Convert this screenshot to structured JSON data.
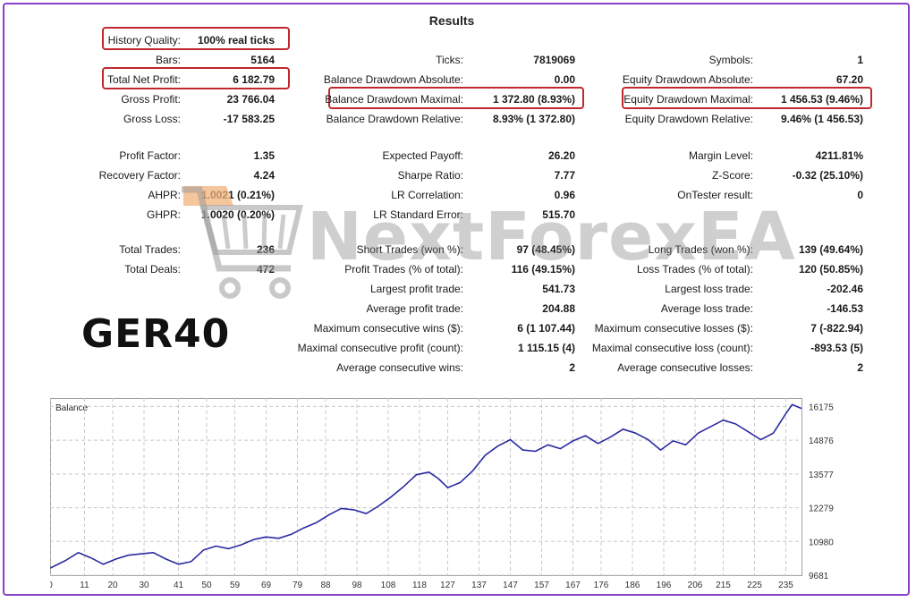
{
  "title": "Results",
  "stats": {
    "history_quality": {
      "label": "History Quality:",
      "value": "100% real ticks"
    },
    "bars": {
      "label": "Bars:",
      "value": "5164"
    },
    "total_net_profit": {
      "label": "Total Net Profit:",
      "value": "6 182.79"
    },
    "gross_profit": {
      "label": "Gross Profit:",
      "value": "23 766.04"
    },
    "gross_loss": {
      "label": "Gross Loss:",
      "value": "-17 583.25"
    },
    "ticks": {
      "label": "Ticks:",
      "value": "7819069"
    },
    "balance_dd_abs": {
      "label": "Balance Drawdown Absolute:",
      "value": "0.00"
    },
    "balance_dd_max": {
      "label": "Balance Drawdown Maximal:",
      "value": "1 372.80 (8.93%)"
    },
    "balance_dd_rel": {
      "label": "Balance Drawdown Relative:",
      "value": "8.93% (1 372.80)"
    },
    "symbols": {
      "label": "Symbols:",
      "value": "1"
    },
    "equity_dd_abs": {
      "label": "Equity Drawdown Absolute:",
      "value": "67.20"
    },
    "equity_dd_max": {
      "label": "Equity Drawdown Maximal:",
      "value": "1 456.53 (9.46%)"
    },
    "equity_dd_rel": {
      "label": "Equity Drawdown Relative:",
      "value": "9.46% (1 456.53)"
    },
    "profit_factor": {
      "label": "Profit Factor:",
      "value": "1.35"
    },
    "recovery_factor": {
      "label": "Recovery Factor:",
      "value": "4.24"
    },
    "ahpr": {
      "label": "AHPR:",
      "value": "1.0021 (0.21%)"
    },
    "ghpr": {
      "label": "GHPR:",
      "value": "1.0020 (0.20%)"
    },
    "expected_payoff": {
      "label": "Expected Payoff:",
      "value": "26.20"
    },
    "sharpe_ratio": {
      "label": "Sharpe Ratio:",
      "value": "7.77"
    },
    "lr_correlation": {
      "label": "LR Correlation:",
      "value": "0.96"
    },
    "lr_std_error": {
      "label": "LR Standard Error:",
      "value": "515.70"
    },
    "margin_level": {
      "label": "Margin Level:",
      "value": "4211.81%"
    },
    "z_score": {
      "label": "Z-Score:",
      "value": "-0.32 (25.10%)"
    },
    "ontester_result": {
      "label": "OnTester result:",
      "value": "0"
    },
    "total_trades": {
      "label": "Total Trades:",
      "value": "236"
    },
    "total_deals": {
      "label": "Total Deals:",
      "value": "472"
    },
    "short_trades": {
      "label": "Short Trades (won %):",
      "value": "97 (48.45%)"
    },
    "profit_trades": {
      "label": "Profit Trades (% of total):",
      "value": "116 (49.15%)"
    },
    "largest_profit_trade": {
      "label": "Largest profit trade:",
      "value": "541.73"
    },
    "average_profit_trade": {
      "label": "Average profit trade:",
      "value": "204.88"
    },
    "max_consec_wins": {
      "label": "Maximum consecutive wins ($):",
      "value": "6 (1 107.44)"
    },
    "maximal_consec_profit": {
      "label": "Maximal consecutive profit (count):",
      "value": "1 115.15 (4)"
    },
    "avg_consec_wins": {
      "label": "Average consecutive wins:",
      "value": "2"
    },
    "long_trades": {
      "label": "Long Trades (won %):",
      "value": "139 (49.64%)"
    },
    "loss_trades": {
      "label": "Loss Trades (% of total):",
      "value": "120 (50.85%)"
    },
    "largest_loss_trade": {
      "label": "Largest loss trade:",
      "value": "-202.46"
    },
    "average_loss_trade": {
      "label": "Average loss trade:",
      "value": "-146.53"
    },
    "max_consec_losses": {
      "label": "Maximum consecutive losses ($):",
      "value": "7 (-822.94)"
    },
    "maximal_consec_loss": {
      "label": "Maximal consecutive loss (count):",
      "value": "-893.53 (5)"
    },
    "avg_consec_losses": {
      "label": "Average consecutive losses:",
      "value": "2"
    }
  },
  "watermark": "NextForexEA",
  "symbol_label": "GER40",
  "colors": {
    "highlight": "#c0282d",
    "frame": "#8a3ec9",
    "line": "#2a2aa0"
  },
  "chart_data": {
    "type": "line",
    "title": "Balance",
    "ylim": [
      9681,
      16500
    ],
    "yticks": [
      9681,
      10980,
      12279,
      13577,
      14876,
      16175
    ],
    "xlim": [
      0,
      240
    ],
    "xticks": [
      0,
      11,
      20,
      30,
      41,
      50,
      59,
      69,
      79,
      88,
      98,
      108,
      118,
      127,
      137,
      147,
      157,
      167,
      176,
      186,
      196,
      206,
      215,
      225,
      235
    ],
    "grid": true,
    "series": [
      {
        "x": [
          0,
          5,
          9,
          13,
          17,
          21,
          25,
          29,
          33,
          37,
          41,
          45,
          49,
          53,
          57,
          61,
          65,
          69,
          73,
          77,
          81,
          85,
          89,
          93,
          97,
          101,
          105,
          109,
          113,
          117,
          121,
          124,
          127,
          131,
          135,
          139,
          143,
          147,
          151,
          155,
          159,
          163,
          167,
          171,
          175,
          179,
          183,
          187,
          191,
          195,
          199,
          203,
          207,
          211,
          215,
          219,
          223,
          227,
          231,
          235,
          237,
          240
        ],
        "y": [
          9950,
          10250,
          10550,
          10350,
          10100,
          10300,
          10450,
          10500,
          10550,
          10300,
          10100,
          10200,
          10650,
          10800,
          10700,
          10850,
          11050,
          11150,
          11100,
          11250,
          11500,
          11700,
          12000,
          12250,
          12200,
          12050,
          12350,
          12700,
          13100,
          13550,
          13650,
          13400,
          13050,
          13250,
          13700,
          14300,
          14650,
          14900,
          14500,
          14450,
          14700,
          14550,
          14850,
          15050,
          14750,
          15000,
          15300,
          15150,
          14900,
          14500,
          14850,
          14700,
          15150,
          15400,
          15650,
          15500,
          15200,
          14900,
          15150,
          15900,
          16250,
          16100
        ]
      }
    ]
  }
}
